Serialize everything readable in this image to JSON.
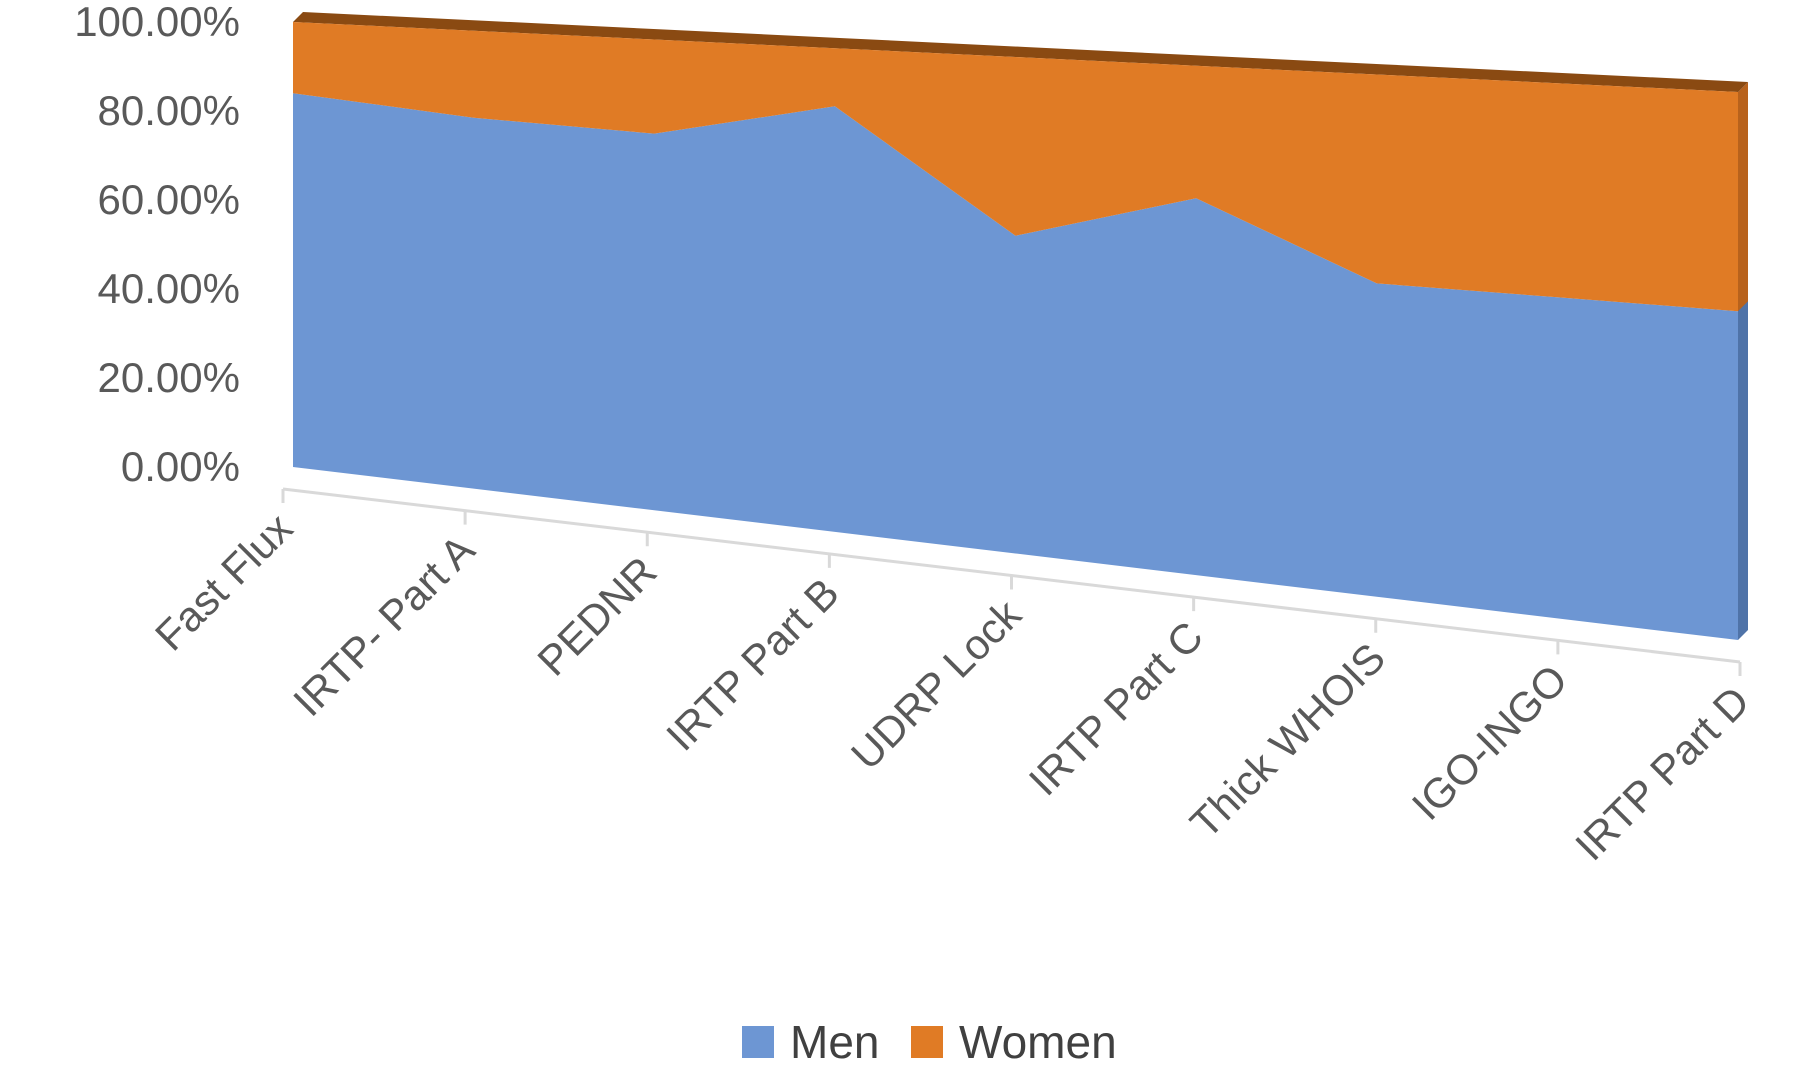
{
  "chart_data": {
    "type": "area",
    "stacked": true,
    "percent_stacked": true,
    "three_d": true,
    "title": "",
    "xlabel": "",
    "ylabel": "",
    "categories": [
      "Fast Flux",
      "IRTP- Part A",
      "PEDNR",
      "IRTP Part B",
      "UDRP Lock",
      "IRTP Part C",
      "Thick WHOIS",
      "IGO-INGO",
      "IRTP Part D"
    ],
    "series": [
      {
        "name": "Men",
        "color": "#6d96d3",
        "values": [
          84,
          81,
          80,
          88,
          64,
          74,
          60,
          60,
          60
        ]
      },
      {
        "name": "Women",
        "color": "#e07b25",
        "values": [
          16,
          19,
          20,
          12,
          36,
          26,
          40,
          40,
          40
        ]
      }
    ],
    "ylim": [
      0,
      100
    ],
    "y_ticks": [
      "0.00%",
      "20.00%",
      "40.00%",
      "60.00%",
      "80.00%",
      "100.00%"
    ],
    "grid": false,
    "legend": "bottom",
    "colors": {
      "side": "#8a4a12",
      "axis": "#d9d9d9",
      "text": "#595959"
    }
  }
}
